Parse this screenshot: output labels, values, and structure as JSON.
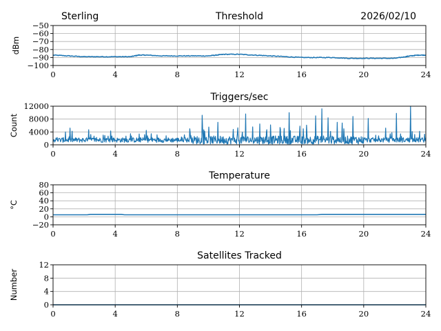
{
  "header": {
    "station": "Sterling",
    "date": "2026/02/10"
  },
  "colors": {
    "series": "#1f77b4",
    "grid": "#b0b0b0"
  },
  "chart_data": [
    {
      "type": "line",
      "title": "Threshold",
      "ylabel": "dBm",
      "xlabel": "",
      "xlim": [
        0,
        24
      ],
      "ylim": [
        -100,
        -50
      ],
      "xticks": [
        0,
        4,
        8,
        12,
        16,
        20,
        24
      ],
      "yticks": [
        -100,
        -90,
        -80,
        -70,
        -60,
        -50
      ],
      "ytick_labels": [
        "−100",
        "−90",
        "−80",
        "−70",
        "−60",
        "−50"
      ],
      "grid": true,
      "series": [
        {
          "name": "threshold",
          "x": [
            0,
            1,
            2,
            3,
            4,
            5,
            5.5,
            6,
            7,
            8,
            9,
            10,
            10.5,
            11,
            12,
            13,
            14,
            15,
            16,
            17,
            18,
            19,
            20,
            21,
            22,
            22.7,
            23,
            23.5,
            24
          ],
          "values": [
            -87,
            -88,
            -89,
            -89,
            -89,
            -89,
            -87,
            -87,
            -88,
            -88,
            -88,
            -88,
            -87,
            -86,
            -86,
            -87,
            -88,
            -89,
            -90,
            -90,
            -90,
            -91,
            -91,
            -91,
            -91,
            -89,
            -88,
            -87,
            -87
          ]
        }
      ]
    },
    {
      "type": "line",
      "title": "Triggers/sec",
      "ylabel": "Count",
      "xlabel": "",
      "xlim": [
        0,
        24
      ],
      "ylim": [
        0,
        12000
      ],
      "xticks": [
        0,
        4,
        8,
        12,
        16,
        20,
        24
      ],
      "yticks": [
        0,
        4000,
        8000,
        12000
      ],
      "ytick_labels": [
        "0",
        "4000",
        "8000",
        "12000"
      ],
      "grid": true,
      "series": [
        {
          "name": "triggers",
          "baseline": 1500,
          "spikes": [
            {
              "x": 0.8,
              "value": 4000
            },
            {
              "x": 1.1,
              "value": 5200
            },
            {
              "x": 2.3,
              "value": 4700
            },
            {
              "x": 3.7,
              "value": 4300
            },
            {
              "x": 6.0,
              "value": 4500
            },
            {
              "x": 8.8,
              "value": 5000
            },
            {
              "x": 9.6,
              "value": 9200
            },
            {
              "x": 10.6,
              "value": 7000
            },
            {
              "x": 11.6,
              "value": 4800
            },
            {
              "x": 11.9,
              "value": 5300
            },
            {
              "x": 12.4,
              "value": 9600
            },
            {
              "x": 13.3,
              "value": 6500
            },
            {
              "x": 14.0,
              "value": 6200
            },
            {
              "x": 14.6,
              "value": 5400
            },
            {
              "x": 15.2,
              "value": 10000
            },
            {
              "x": 15.9,
              "value": 5800
            },
            {
              "x": 16.1,
              "value": 5000
            },
            {
              "x": 16.9,
              "value": 9000
            },
            {
              "x": 17.3,
              "value": 11200
            },
            {
              "x": 17.7,
              "value": 8400
            },
            {
              "x": 18.3,
              "value": 7000
            },
            {
              "x": 18.6,
              "value": 6800
            },
            {
              "x": 19.3,
              "value": 8800
            },
            {
              "x": 20.3,
              "value": 8200
            },
            {
              "x": 21.4,
              "value": 5200
            },
            {
              "x": 22.1,
              "value": 9800
            },
            {
              "x": 23.0,
              "value": 12000
            },
            {
              "x": 23.6,
              "value": 4200
            }
          ]
        }
      ]
    },
    {
      "type": "line",
      "title": "Temperature",
      "ylabel": "°C",
      "xlabel": "",
      "xlim": [
        0,
        24
      ],
      "ylim": [
        -20,
        80
      ],
      "xticks": [
        0,
        4,
        8,
        12,
        16,
        20,
        24
      ],
      "yticks": [
        -20,
        0,
        20,
        40,
        60,
        80
      ],
      "ytick_labels": [
        "−20",
        "0",
        "20",
        "40",
        "60",
        "80"
      ],
      "grid": true,
      "series": [
        {
          "name": "temperature",
          "x": [
            0,
            2.2,
            2.4,
            4.4,
            4.6,
            17.0,
            17.3,
            24
          ],
          "values": [
            5,
            5,
            6,
            6,
            5,
            5,
            6,
            6
          ]
        }
      ]
    },
    {
      "type": "line",
      "title": "Satellites Tracked",
      "ylabel": "Number",
      "xlabel": "",
      "xlim": [
        0,
        24
      ],
      "ylim": [
        0,
        12
      ],
      "xticks": [
        0,
        4,
        8,
        12,
        16,
        20,
        24
      ],
      "yticks": [
        0,
        4,
        8,
        12
      ],
      "ytick_labels": [
        "0",
        "4",
        "8",
        "12"
      ],
      "grid": true,
      "series": [
        {
          "name": "satellites",
          "x": [
            0,
            24
          ],
          "values": [
            0,
            0
          ]
        }
      ]
    }
  ]
}
